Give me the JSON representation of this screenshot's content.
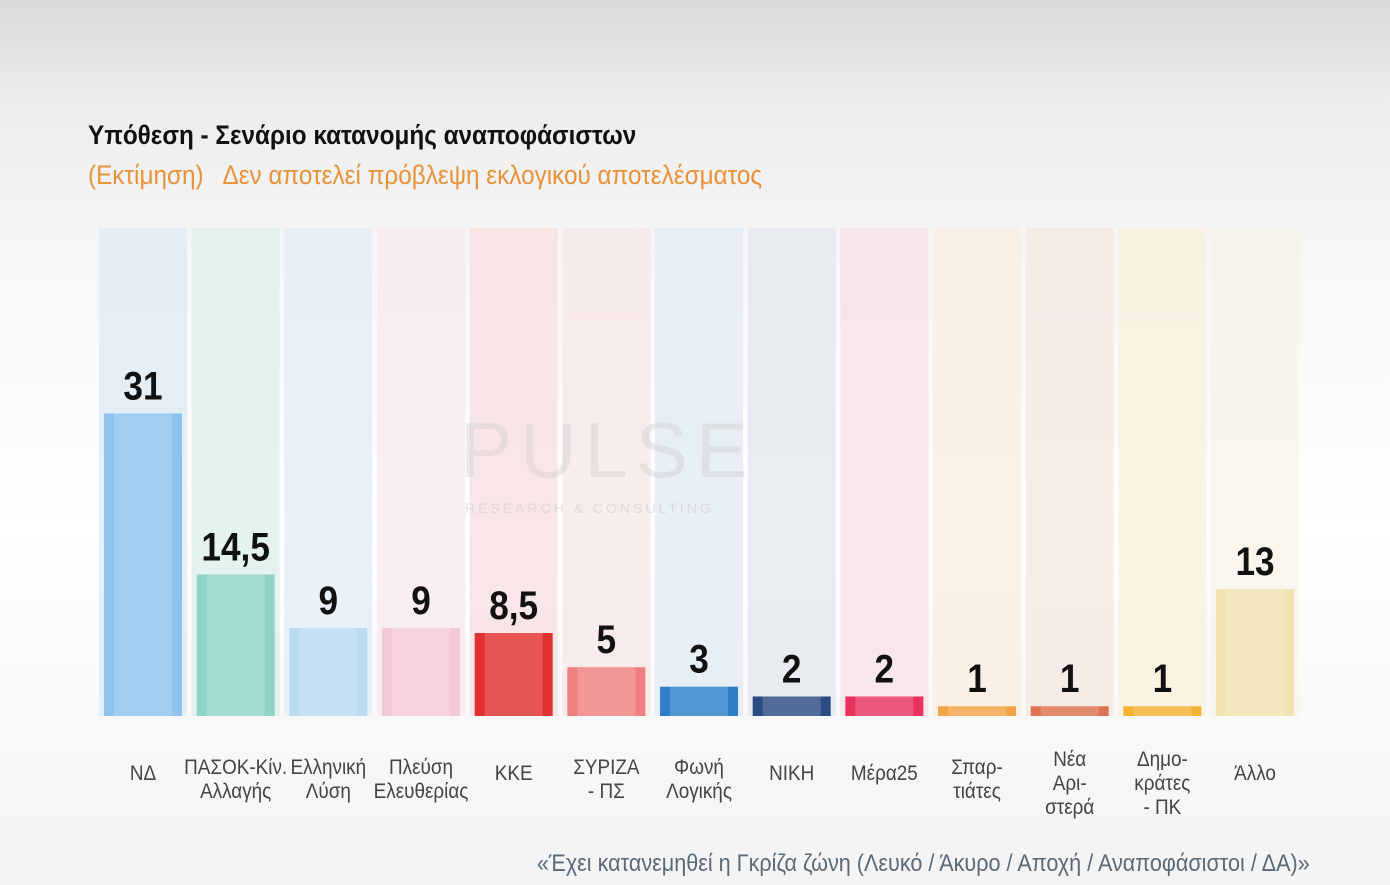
{
  "header": {
    "title": "Υπόθεση - Σενάριο κατανομής αναποφάσιστων",
    "subtitle": "(Εκτίμηση)   Δεν αποτελεί πρόβλεψη εκλογικού αποτελέσματος"
  },
  "watermark": {
    "brand": "PULSE",
    "tagline": "RESEARCH & CONSULTING"
  },
  "footer": "«Έχει κατανεμηθεί η Γκρίζα ζώνη (Λευκό / Άκυρο / Αποχή / Αναποφάσιστοι / ΔΑ)»",
  "chart_data": {
    "type": "bar",
    "title": "Υπόθεση - Σενάριο κατανομής αναποφάσιστων",
    "xlabel": "",
    "ylabel": "",
    "ylim": [
      0,
      50
    ],
    "grid": false,
    "categories": [
      "ΝΔ",
      "ΠΑΣΟΚ-Κίν. Αλλαγής",
      "Ελληνική Λύση",
      "Πλεύση Ελευθερίας",
      "ΚΚΕ",
      "ΣΥΡΙΖΑ - ΠΣ",
      "Φωνή Λογικής",
      "ΝΙΚΗ",
      "Μέρα25",
      "Σπαρ-τιάτες",
      "Νέα Αρι-στερά",
      "Δημο-κράτες - ΠΚ",
      "Άλλο"
    ],
    "category_lines": [
      [
        "ΝΔ"
      ],
      [
        "ΠΑΣΟΚ-Κίν.",
        "Αλλαγής"
      ],
      [
        "Ελληνική",
        "Λύση"
      ],
      [
        "Πλεύση",
        "Ελευθερίας"
      ],
      [
        "ΚΚΕ"
      ],
      [
        "ΣΥΡΙΖΑ",
        "- ΠΣ"
      ],
      [
        "Φωνή",
        "Λογικής"
      ],
      [
        "ΝΙΚΗ"
      ],
      [
        "Μέρα25"
      ],
      [
        "Σπαρ-",
        "τιάτες"
      ],
      [
        "Νέα",
        "Αρι-",
        "στερά"
      ],
      [
        "Δημο-",
        "κράτες",
        "- ΠΚ"
      ],
      [
        "Άλλο"
      ]
    ],
    "values": [
      31,
      14.5,
      9,
      9,
      8.5,
      5,
      3,
      2,
      2,
      1,
      1,
      1,
      13
    ],
    "value_labels": [
      "31",
      "14,5",
      "9",
      "9",
      "8,5",
      "5",
      "3",
      "2",
      "2",
      "1",
      "1",
      "1",
      "13"
    ],
    "colors": [
      "#8ec3ef",
      "#8fd3c6",
      "#b9dcf3",
      "#f3c9d6",
      "#e0302f",
      "#ef7f7f",
      "#2d7fca",
      "#2b4c82",
      "#e8335f",
      "#f2a446",
      "#e07254",
      "#f3b233",
      "#f3e3b0"
    ],
    "column_tints": [
      "#dce9f4",
      "#dcefeb",
      "#e3eef6",
      "#f7e9ee",
      "#f7dfe0",
      "#f7e6e6",
      "#e0eaf4",
      "#e2e7ee",
      "#f6e0e6",
      "#f8ecdf",
      "#f6e6e2",
      "#f8f0dc",
      "#f7f3ea"
    ]
  }
}
